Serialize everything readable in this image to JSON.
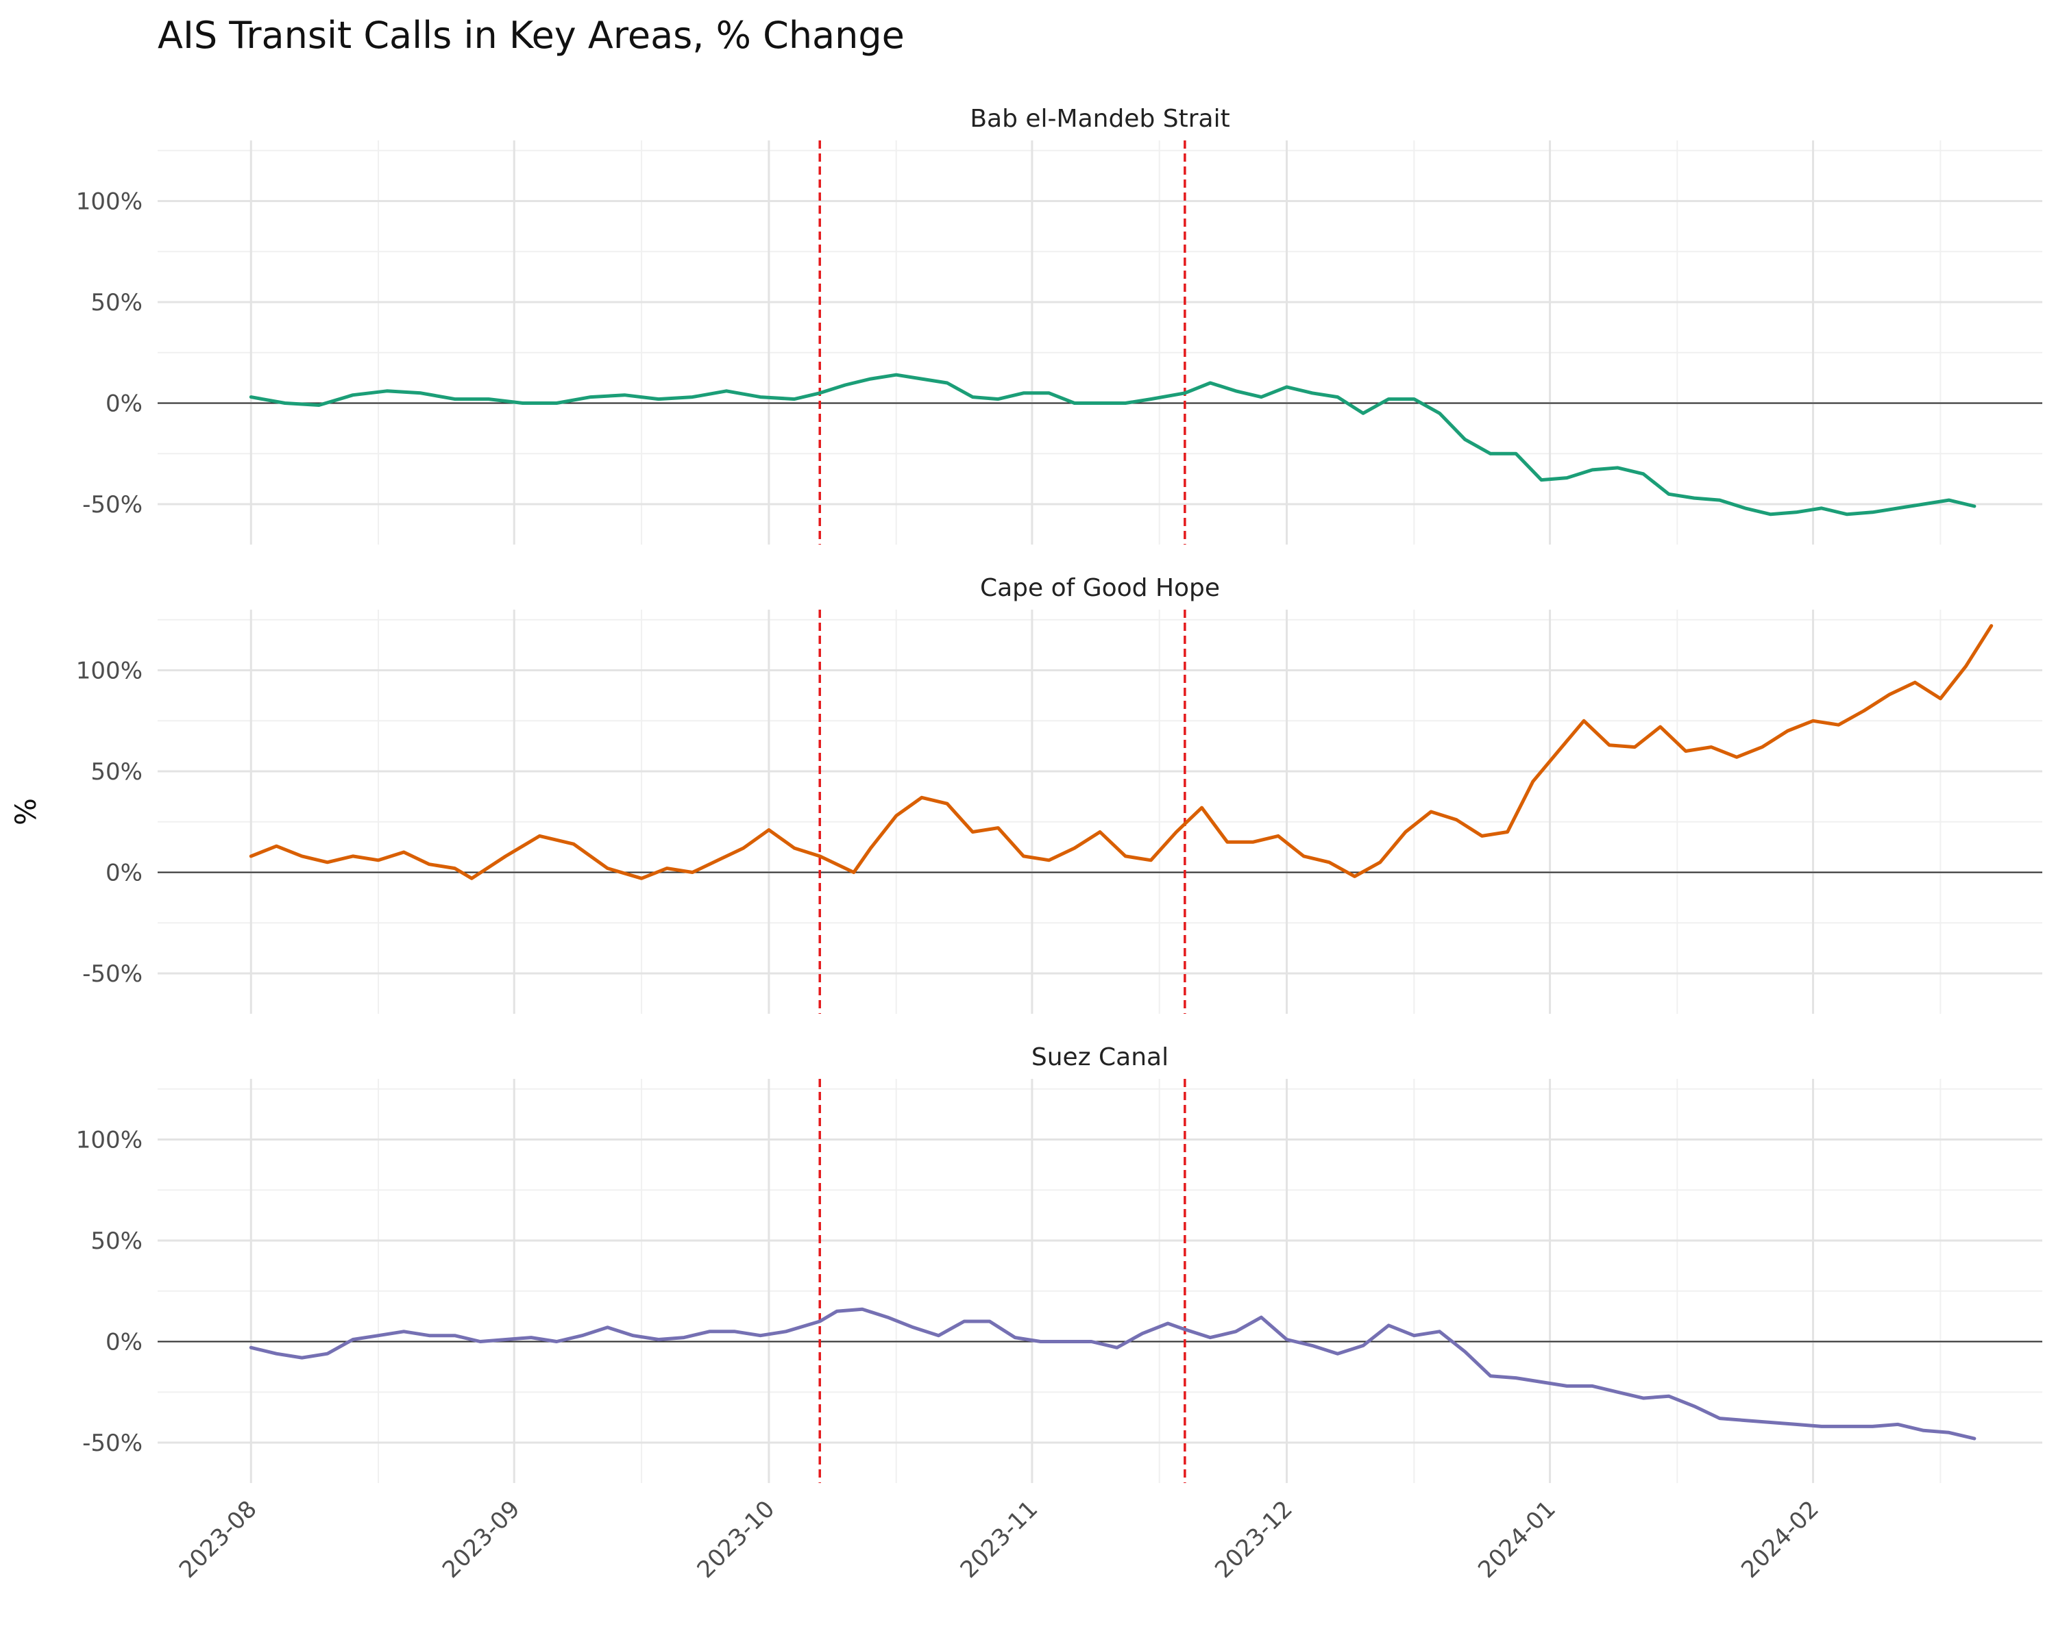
{
  "chart_data": {
    "type": "line",
    "title": "AIS Transit Calls in Key Areas, % Change",
    "ylabel": "%",
    "xlabel": "",
    "x_ticks": [
      "2023-08",
      "2023-09",
      "2023-10",
      "2023-11",
      "2023-12",
      "2024-01",
      "2024-02"
    ],
    "y_ticks": [
      "100%",
      "50%",
      "0%",
      "-50%"
    ],
    "y_tick_values": [
      100,
      50,
      0,
      -50
    ],
    "ylim": [
      -70,
      130
    ],
    "xlim": [
      "2023-07-21",
      "2024-02-28"
    ],
    "grid": true,
    "zero_line": true,
    "reference_lines": [
      "2023-10-07",
      "2023-11-19"
    ],
    "reference_line_color": "#e41a1c",
    "facets": [
      {
        "name": "Bab el-Mandeb Strait",
        "color": "#1b9e77",
        "points": [
          [
            "2023-08-01",
            3
          ],
          [
            "2023-08-05",
            0
          ],
          [
            "2023-08-09",
            -1
          ],
          [
            "2023-08-13",
            4
          ],
          [
            "2023-08-17",
            6
          ],
          [
            "2023-08-21",
            5
          ],
          [
            "2023-08-25",
            2
          ],
          [
            "2023-08-29",
            2
          ],
          [
            "2023-09-02",
            0
          ],
          [
            "2023-09-06",
            0
          ],
          [
            "2023-09-10",
            3
          ],
          [
            "2023-09-14",
            4
          ],
          [
            "2023-09-18",
            2
          ],
          [
            "2023-09-22",
            3
          ],
          [
            "2023-09-26",
            6
          ],
          [
            "2023-09-30",
            3
          ],
          [
            "2023-10-04",
            2
          ],
          [
            "2023-10-07",
            5
          ],
          [
            "2023-10-10",
            9
          ],
          [
            "2023-10-13",
            12
          ],
          [
            "2023-10-16",
            14
          ],
          [
            "2023-10-19",
            12
          ],
          [
            "2023-10-22",
            10
          ],
          [
            "2023-10-25",
            3
          ],
          [
            "2023-10-28",
            2
          ],
          [
            "2023-10-31",
            5
          ],
          [
            "2023-11-03",
            5
          ],
          [
            "2023-11-06",
            0
          ],
          [
            "2023-11-09",
            0
          ],
          [
            "2023-11-12",
            0
          ],
          [
            "2023-11-15",
            2
          ],
          [
            "2023-11-19",
            5
          ],
          [
            "2023-11-22",
            10
          ],
          [
            "2023-11-25",
            6
          ],
          [
            "2023-11-28",
            3
          ],
          [
            "2023-12-01",
            8
          ],
          [
            "2023-12-04",
            5
          ],
          [
            "2023-12-07",
            3
          ],
          [
            "2023-12-10",
            -5
          ],
          [
            "2023-12-13",
            2
          ],
          [
            "2023-12-16",
            2
          ],
          [
            "2023-12-19",
            -5
          ],
          [
            "2023-12-22",
            -18
          ],
          [
            "2023-12-25",
            -25
          ],
          [
            "2023-12-28",
            -25
          ],
          [
            "2023-12-31",
            -38
          ],
          [
            "2024-01-03",
            -37
          ],
          [
            "2024-01-06",
            -33
          ],
          [
            "2024-01-09",
            -32
          ],
          [
            "2024-01-12",
            -35
          ],
          [
            "2024-01-15",
            -45
          ],
          [
            "2024-01-18",
            -47
          ],
          [
            "2024-01-21",
            -48
          ],
          [
            "2024-01-24",
            -52
          ],
          [
            "2024-01-27",
            -55
          ],
          [
            "2024-01-30",
            -54
          ],
          [
            "2024-02-02",
            -52
          ],
          [
            "2024-02-05",
            -55
          ],
          [
            "2024-02-08",
            -54
          ],
          [
            "2024-02-11",
            -52
          ],
          [
            "2024-02-14",
            -50
          ],
          [
            "2024-02-17",
            -48
          ],
          [
            "2024-02-20",
            -51
          ]
        ]
      },
      {
        "name": "Cape of Good Hope",
        "color": "#d95f02",
        "points": [
          [
            "2023-08-01",
            8
          ],
          [
            "2023-08-04",
            13
          ],
          [
            "2023-08-07",
            8
          ],
          [
            "2023-08-10",
            5
          ],
          [
            "2023-08-13",
            8
          ],
          [
            "2023-08-16",
            6
          ],
          [
            "2023-08-19",
            10
          ],
          [
            "2023-08-22",
            4
          ],
          [
            "2023-08-25",
            2
          ],
          [
            "2023-08-27",
            -3
          ],
          [
            "2023-08-31",
            8
          ],
          [
            "2023-09-04",
            18
          ],
          [
            "2023-09-08",
            14
          ],
          [
            "2023-09-12",
            2
          ],
          [
            "2023-09-16",
            -3
          ],
          [
            "2023-09-19",
            2
          ],
          [
            "2023-09-22",
            0
          ],
          [
            "2023-09-25",
            6
          ],
          [
            "2023-09-28",
            12
          ],
          [
            "2023-10-01",
            21
          ],
          [
            "2023-10-04",
            12
          ],
          [
            "2023-10-07",
            8
          ],
          [
            "2023-10-11",
            0
          ],
          [
            "2023-10-13",
            12
          ],
          [
            "2023-10-16",
            28
          ],
          [
            "2023-10-19",
            37
          ],
          [
            "2023-10-22",
            34
          ],
          [
            "2023-10-25",
            20
          ],
          [
            "2023-10-28",
            22
          ],
          [
            "2023-10-31",
            8
          ],
          [
            "2023-11-03",
            6
          ],
          [
            "2023-11-06",
            12
          ],
          [
            "2023-11-09",
            20
          ],
          [
            "2023-11-12",
            8
          ],
          [
            "2023-11-15",
            6
          ],
          [
            "2023-11-18",
            20
          ],
          [
            "2023-11-21",
            32
          ],
          [
            "2023-11-24",
            15
          ],
          [
            "2023-11-27",
            15
          ],
          [
            "2023-11-30",
            18
          ],
          [
            "2023-12-03",
            8
          ],
          [
            "2023-12-06",
            5
          ],
          [
            "2023-12-09",
            -2
          ],
          [
            "2023-12-12",
            5
          ],
          [
            "2023-12-15",
            20
          ],
          [
            "2023-12-18",
            30
          ],
          [
            "2023-12-21",
            26
          ],
          [
            "2023-12-24",
            18
          ],
          [
            "2023-12-27",
            20
          ],
          [
            "2023-12-30",
            45
          ],
          [
            "2024-01-02",
            60
          ],
          [
            "2024-01-05",
            75
          ],
          [
            "2024-01-08",
            63
          ],
          [
            "2024-01-11",
            62
          ],
          [
            "2024-01-14",
            72
          ],
          [
            "2024-01-17",
            60
          ],
          [
            "2024-01-20",
            62
          ],
          [
            "2024-01-23",
            57
          ],
          [
            "2024-01-26",
            62
          ],
          [
            "2024-01-29",
            70
          ],
          [
            "2024-02-01",
            75
          ],
          [
            "2024-02-04",
            73
          ],
          [
            "2024-02-07",
            80
          ],
          [
            "2024-02-10",
            88
          ],
          [
            "2024-02-13",
            94
          ],
          [
            "2024-02-16",
            86
          ],
          [
            "2024-02-19",
            102
          ],
          [
            "2024-02-22",
            122
          ]
        ]
      },
      {
        "name": "Suez Canal",
        "color": "#7570b3",
        "points": [
          [
            "2023-08-01",
            -3
          ],
          [
            "2023-08-04",
            -6
          ],
          [
            "2023-08-07",
            -8
          ],
          [
            "2023-08-10",
            -6
          ],
          [
            "2023-08-13",
            1
          ],
          [
            "2023-08-16",
            3
          ],
          [
            "2023-08-19",
            5
          ],
          [
            "2023-08-22",
            3
          ],
          [
            "2023-08-25",
            3
          ],
          [
            "2023-08-28",
            0
          ],
          [
            "2023-08-31",
            1
          ],
          [
            "2023-09-03",
            2
          ],
          [
            "2023-09-06",
            0
          ],
          [
            "2023-09-09",
            3
          ],
          [
            "2023-09-12",
            7
          ],
          [
            "2023-09-15",
            3
          ],
          [
            "2023-09-18",
            1
          ],
          [
            "2023-09-21",
            2
          ],
          [
            "2023-09-24",
            5
          ],
          [
            "2023-09-27",
            5
          ],
          [
            "2023-09-30",
            3
          ],
          [
            "2023-10-03",
            5
          ],
          [
            "2023-10-07",
            10
          ],
          [
            "2023-10-09",
            15
          ],
          [
            "2023-10-12",
            16
          ],
          [
            "2023-10-15",
            12
          ],
          [
            "2023-10-18",
            7
          ],
          [
            "2023-10-21",
            3
          ],
          [
            "2023-10-24",
            10
          ],
          [
            "2023-10-27",
            10
          ],
          [
            "2023-10-30",
            2
          ],
          [
            "2023-11-02",
            0
          ],
          [
            "2023-11-05",
            0
          ],
          [
            "2023-11-08",
            0
          ],
          [
            "2023-11-11",
            -3
          ],
          [
            "2023-11-14",
            4
          ],
          [
            "2023-11-17",
            9
          ],
          [
            "2023-11-19",
            6
          ],
          [
            "2023-11-22",
            2
          ],
          [
            "2023-11-25",
            5
          ],
          [
            "2023-11-28",
            12
          ],
          [
            "2023-12-01",
            1
          ],
          [
            "2023-12-04",
            -2
          ],
          [
            "2023-12-07",
            -6
          ],
          [
            "2023-12-10",
            -2
          ],
          [
            "2023-12-13",
            8
          ],
          [
            "2023-12-16",
            3
          ],
          [
            "2023-12-19",
            5
          ],
          [
            "2023-12-22",
            -5
          ],
          [
            "2023-12-25",
            -17
          ],
          [
            "2023-12-28",
            -18
          ],
          [
            "2023-12-31",
            -20
          ],
          [
            "2024-01-03",
            -22
          ],
          [
            "2024-01-06",
            -22
          ],
          [
            "2024-01-09",
            -25
          ],
          [
            "2024-01-12",
            -28
          ],
          [
            "2024-01-15",
            -27
          ],
          [
            "2024-01-18",
            -32
          ],
          [
            "2024-01-21",
            -38
          ],
          [
            "2024-01-24",
            -39
          ],
          [
            "2024-01-27",
            -40
          ],
          [
            "2024-01-30",
            -41
          ],
          [
            "2024-02-02",
            -42
          ],
          [
            "2024-02-05",
            -42
          ],
          [
            "2024-02-08",
            -42
          ],
          [
            "2024-02-11",
            -41
          ],
          [
            "2024-02-14",
            -44
          ],
          [
            "2024-02-17",
            -45
          ],
          [
            "2024-02-20",
            -48
          ]
        ]
      }
    ]
  }
}
